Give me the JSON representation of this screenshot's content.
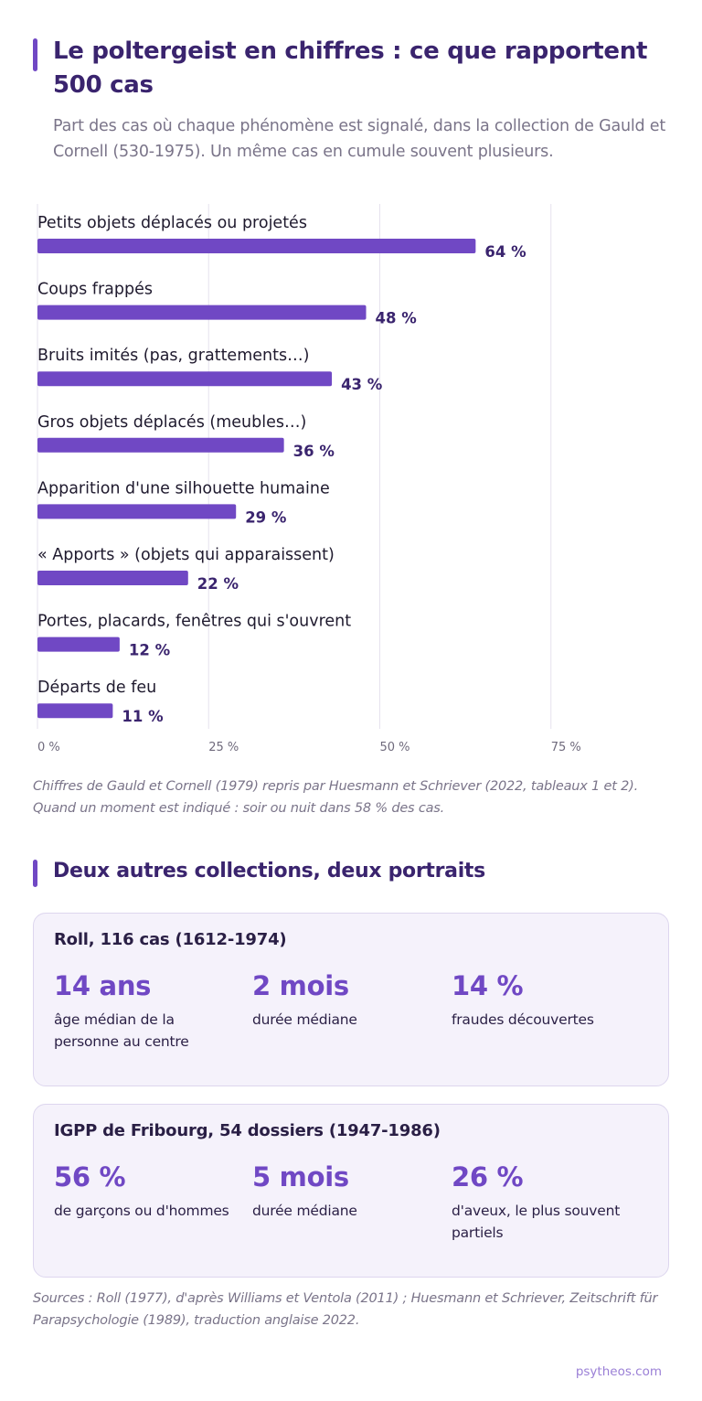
{
  "title": "Le poltergeist en chiffres : ce que rapportent 500 cas",
  "subtitle": "Part des cas où chaque phénomène est signalé, dans la collection de Gauld et Cornell (530-1975). Un même cas en cumule souvent plusieurs.",
  "chart_data": {
    "type": "bar",
    "orientation": "horizontal",
    "categories": [
      "Petits objets déplacés ou projetés",
      "Coups frappés",
      "Bruits imités (pas, grattements…)",
      "Gros objets déplacés (meubles…)",
      "Apparition d'une silhouette humaine",
      "« Apports » (objets qui apparaissent)",
      "Portes, placards, fenêtres qui s'ouvrent",
      "Départs de feu"
    ],
    "values": [
      64,
      48,
      43,
      36,
      29,
      22,
      12,
      11
    ],
    "value_labels": [
      "64 %",
      "48 %",
      "43 %",
      "36 %",
      "29 %",
      "22 %",
      "12 %",
      "11 %"
    ],
    "xlim": [
      0,
      75
    ],
    "x_ticks": [
      0,
      25,
      50,
      75
    ],
    "x_tick_labels": [
      "0 %",
      "25 %",
      "50 %",
      "75 %"
    ],
    "grid": true,
    "bar_color": "#7048c4"
  },
  "note": "Chiffres de Gauld et Cornell (1979) repris par Huesmann et Schriever (2022, tableaux 1 et 2). Quand un moment est indiqué : soir ou nuit dans 58 % des cas.",
  "section2": {
    "title": "Deux autres collections, deux portraits",
    "cards": [
      {
        "title": "Roll, 116 cas (1612-1974)",
        "stats": [
          {
            "value": "14 ans",
            "label": "âge médian de la personne au centre"
          },
          {
            "value": "2 mois",
            "label": "durée médiane"
          },
          {
            "value": "14 %",
            "label": "fraudes découvertes"
          }
        ]
      },
      {
        "title": "IGPP de Fribourg, 54 dossiers (1947-1986)",
        "stats": [
          {
            "value": "56 %",
            "label": "de garçons ou d'hommes"
          },
          {
            "value": "5 mois",
            "label": "durée médiane"
          },
          {
            "value": "26 %",
            "label": "d'aveux, le plus souvent partiels"
          }
        ]
      }
    ]
  },
  "sources": "Sources : Roll (1977), d'après Williams et Ventola (2011) ; Huesmann et Schriever, Zeitschrift für Parapsychologie (1989), traduction anglaise 2022.",
  "footer": "psytheos.com",
  "colors": {
    "accent": "#7048c4",
    "title": "#3a246e",
    "muted": "#7a7489",
    "card_bg": "#f5f2fb"
  }
}
